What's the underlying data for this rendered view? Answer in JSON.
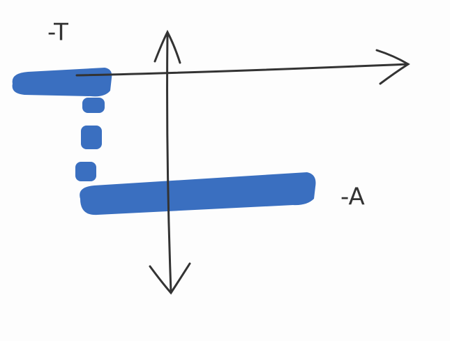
{
  "labels": [
    "-T",
    "-A"
  ]
}
